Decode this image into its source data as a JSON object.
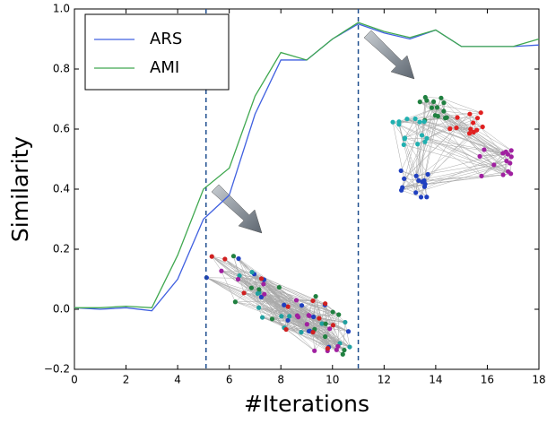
{
  "chart_data": {
    "type": "line",
    "x_label": "#Iterations",
    "y_label": "Similarity",
    "x": [
      0,
      1,
      2,
      3,
      4,
      5,
      6,
      7,
      8,
      9,
      10,
      11,
      12,
      13,
      14,
      15,
      16,
      17,
      18
    ],
    "series": [
      {
        "name": "ARS",
        "color": "#4060e0",
        "values": [
          0.005,
          0.0,
          0.005,
          -0.005,
          0.1,
          0.3,
          0.38,
          0.65,
          0.83,
          0.83,
          0.9,
          0.95,
          0.92,
          0.9,
          0.93,
          0.875,
          0.875,
          0.875,
          0.88
        ]
      },
      {
        "name": "AMI",
        "color": "#40a850",
        "values": [
          0.005,
          0.005,
          0.01,
          0.005,
          0.18,
          0.4,
          0.47,
          0.71,
          0.855,
          0.83,
          0.9,
          0.955,
          0.925,
          0.905,
          0.93,
          0.875,
          0.875,
          0.875,
          0.9
        ]
      }
    ],
    "vlines": [
      5.1,
      11
    ],
    "vline_color": "#1f4f8f",
    "xlim": [
      0,
      18
    ],
    "xticks": [
      0,
      2,
      4,
      6,
      8,
      10,
      12,
      14,
      16,
      18
    ],
    "ylim": [
      -0.2,
      1.0
    ],
    "yticks": [
      {
        "value": -0.2,
        "label": "−0.2"
      },
      {
        "value": 0,
        "label": "0.0"
      },
      0.2,
      0.4,
      0.6,
      0.8,
      {
        "value": 1.0,
        "label": "1.0"
      }
    ],
    "legend": "upper left",
    "grid": false
  }
}
